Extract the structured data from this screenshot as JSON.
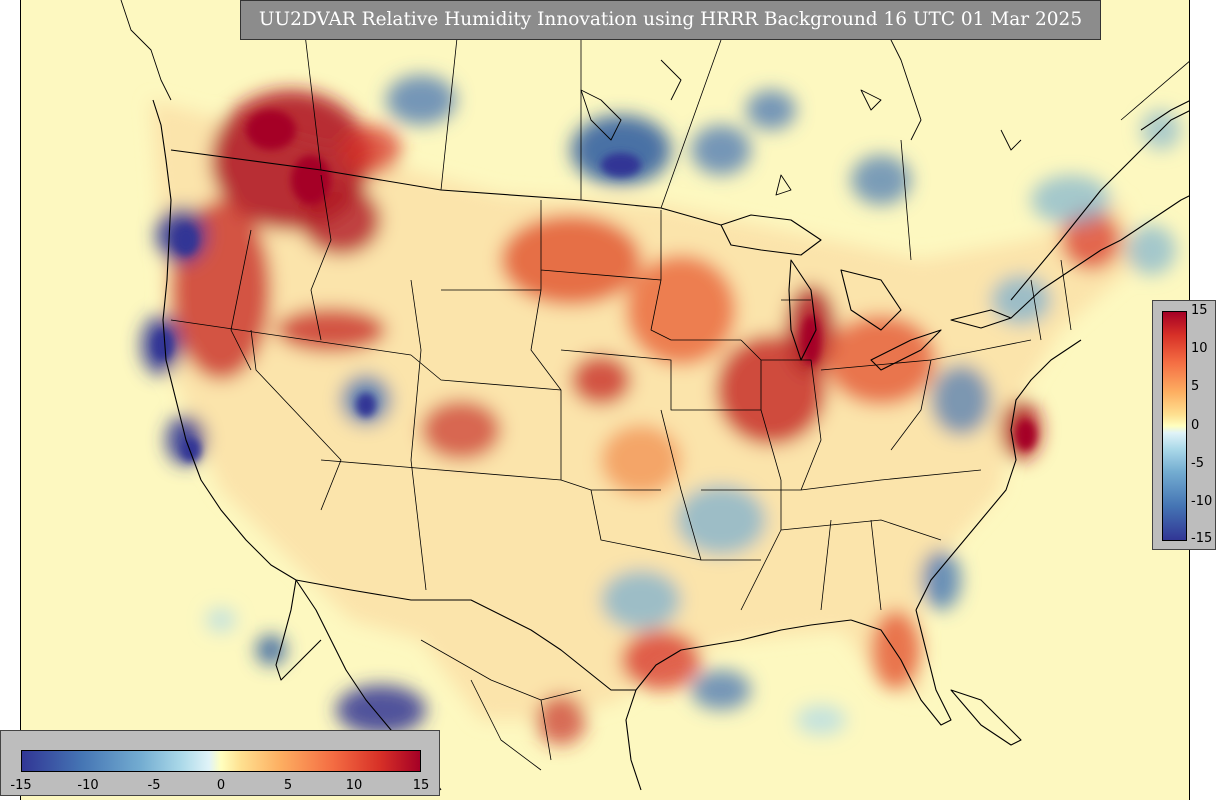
{
  "title": "UU2DVAR Relative Humidity Innovation using HRRR Background 16 UTC 01 Mar 2025",
  "colorbar_ticks": [
    "-15",
    "-10",
    "-5",
    "0",
    "5",
    "10",
    "15"
  ],
  "colorbar_ticks_vertical": [
    "15",
    "10",
    "5",
    "0",
    "-5",
    "-10",
    "-15"
  ],
  "colors": {
    "background": "#fdf8c0",
    "strong_positive": "#a50026",
    "positive": "#f46d43",
    "neutral": "#ffffbf",
    "negative": "#74add1",
    "strong_negative": "#313695"
  }
}
